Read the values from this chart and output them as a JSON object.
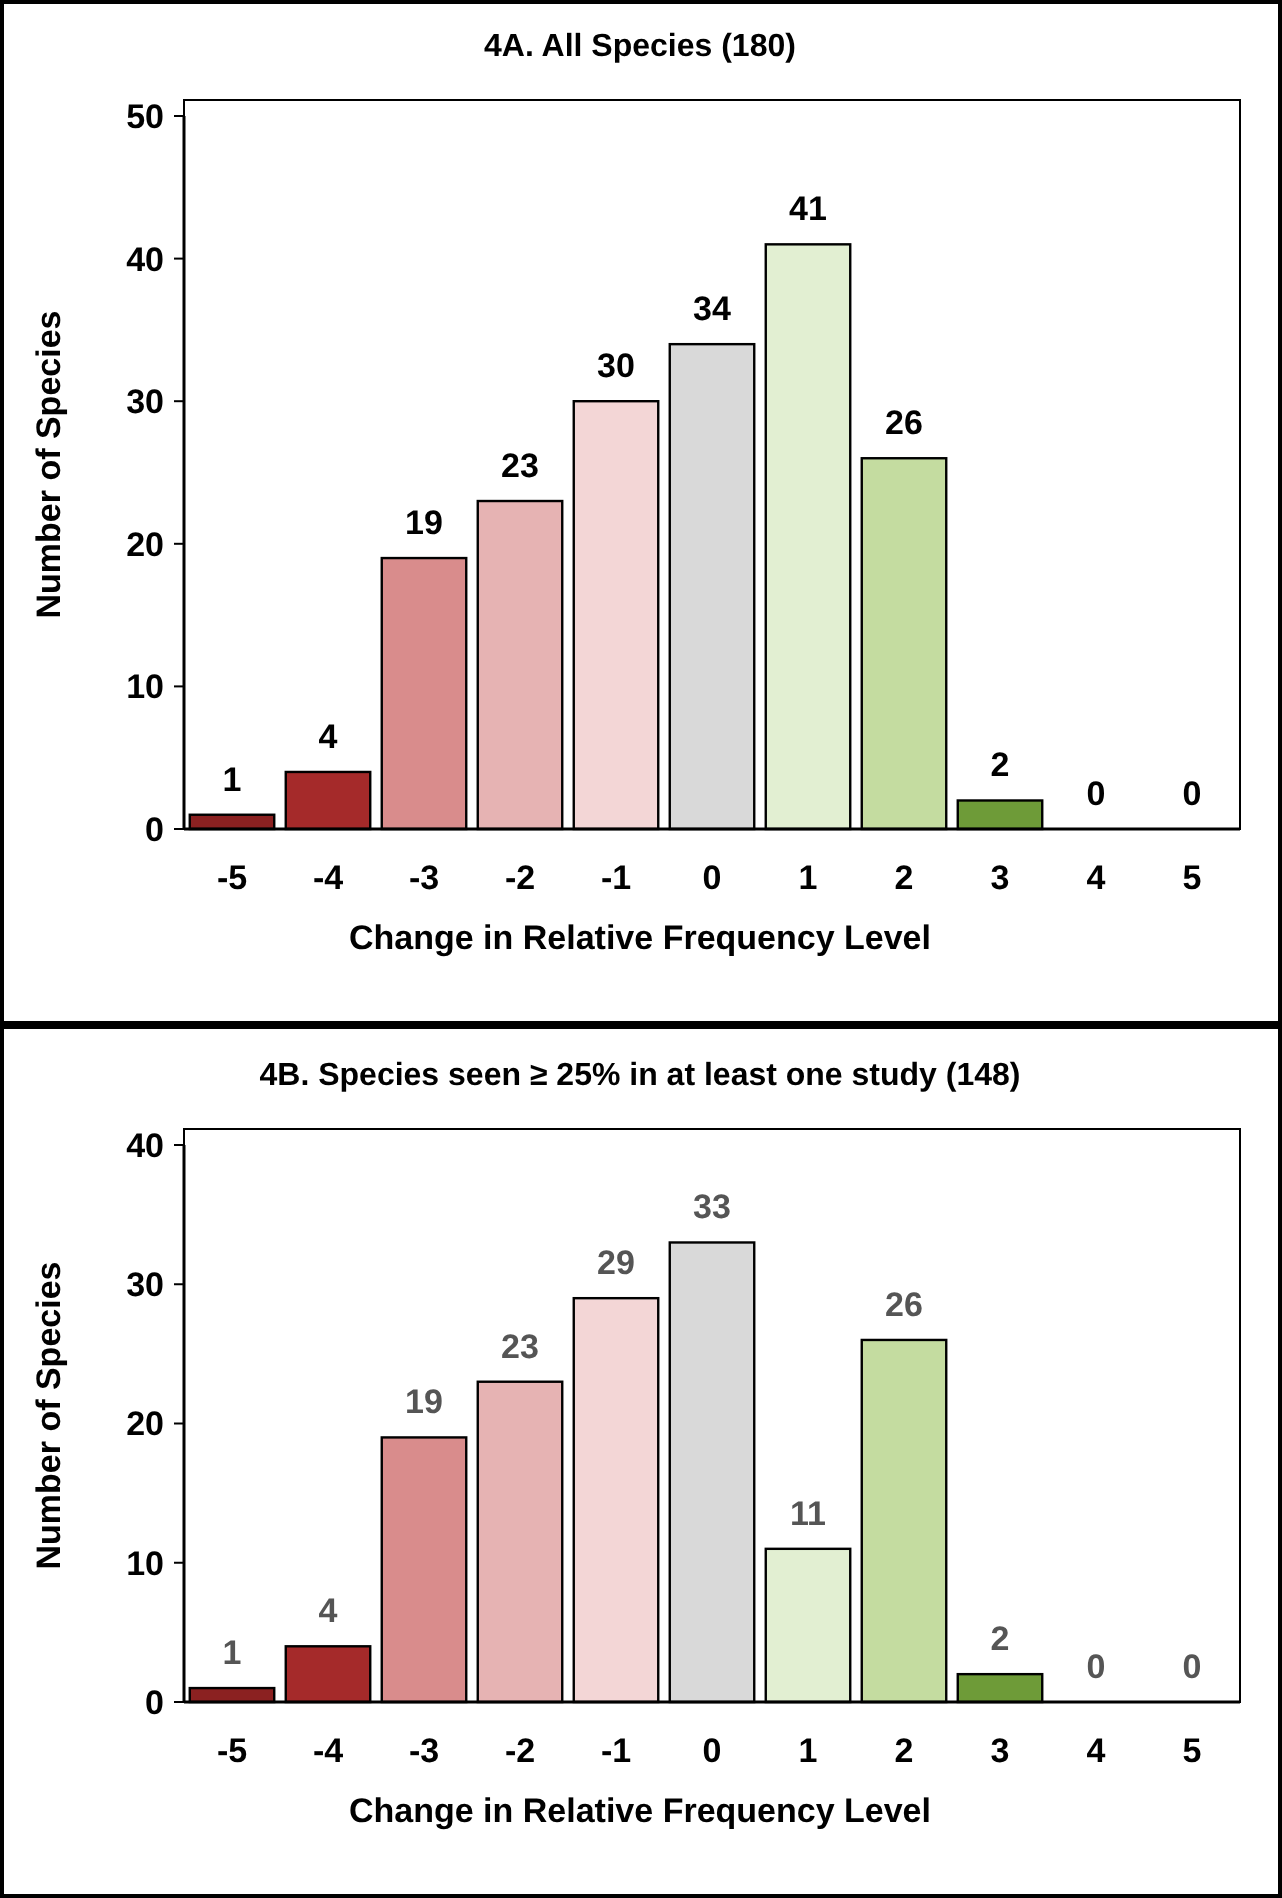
{
  "chart_data": [
    {
      "type": "bar",
      "title": "4A. All Species (180)",
      "xlabel": "Change in Relative Frequency Level",
      "ylabel": "Number of Species",
      "categories": [
        "-5",
        "-4",
        "-3",
        "-2",
        "-1",
        "0",
        "1",
        "2",
        "3",
        "4",
        "5"
      ],
      "values": [
        1,
        4,
        19,
        23,
        30,
        34,
        41,
        26,
        2,
        0,
        0
      ],
      "colors": [
        "#8b2121",
        "#a52a2a",
        "#d98c8c",
        "#e6b3b3",
        "#f3d6d6",
        "#d9d9d9",
        "#e2efd2",
        "#c4dca0",
        "#6e9b38",
        "#6e9b38",
        "#6e9b38"
      ],
      "ylim": [
        0,
        50
      ],
      "yticks": [
        0,
        10,
        20,
        30,
        40,
        50
      ],
      "data_labels": true
    },
    {
      "type": "bar",
      "title": "4B. Species seen ≥ 25% in at least one study (148)",
      "xlabel": "Change in Relative Frequency Level",
      "ylabel": "Number of Species",
      "categories": [
        "-5",
        "-4",
        "-3",
        "-2",
        "-1",
        "0",
        "1",
        "2",
        "3",
        "4",
        "5"
      ],
      "values": [
        1,
        4,
        19,
        23,
        29,
        33,
        11,
        26,
        2,
        0,
        0
      ],
      "colors": [
        "#8b2121",
        "#a52a2a",
        "#d98c8c",
        "#e6b3b3",
        "#f3d6d6",
        "#d9d9d9",
        "#e2efd2",
        "#c4dca0",
        "#6e9b38",
        "#6e9b38",
        "#6e9b38"
      ],
      "ylim": [
        0,
        40
      ],
      "yticks": [
        0,
        10,
        20,
        30,
        40
      ],
      "data_labels": true
    }
  ]
}
